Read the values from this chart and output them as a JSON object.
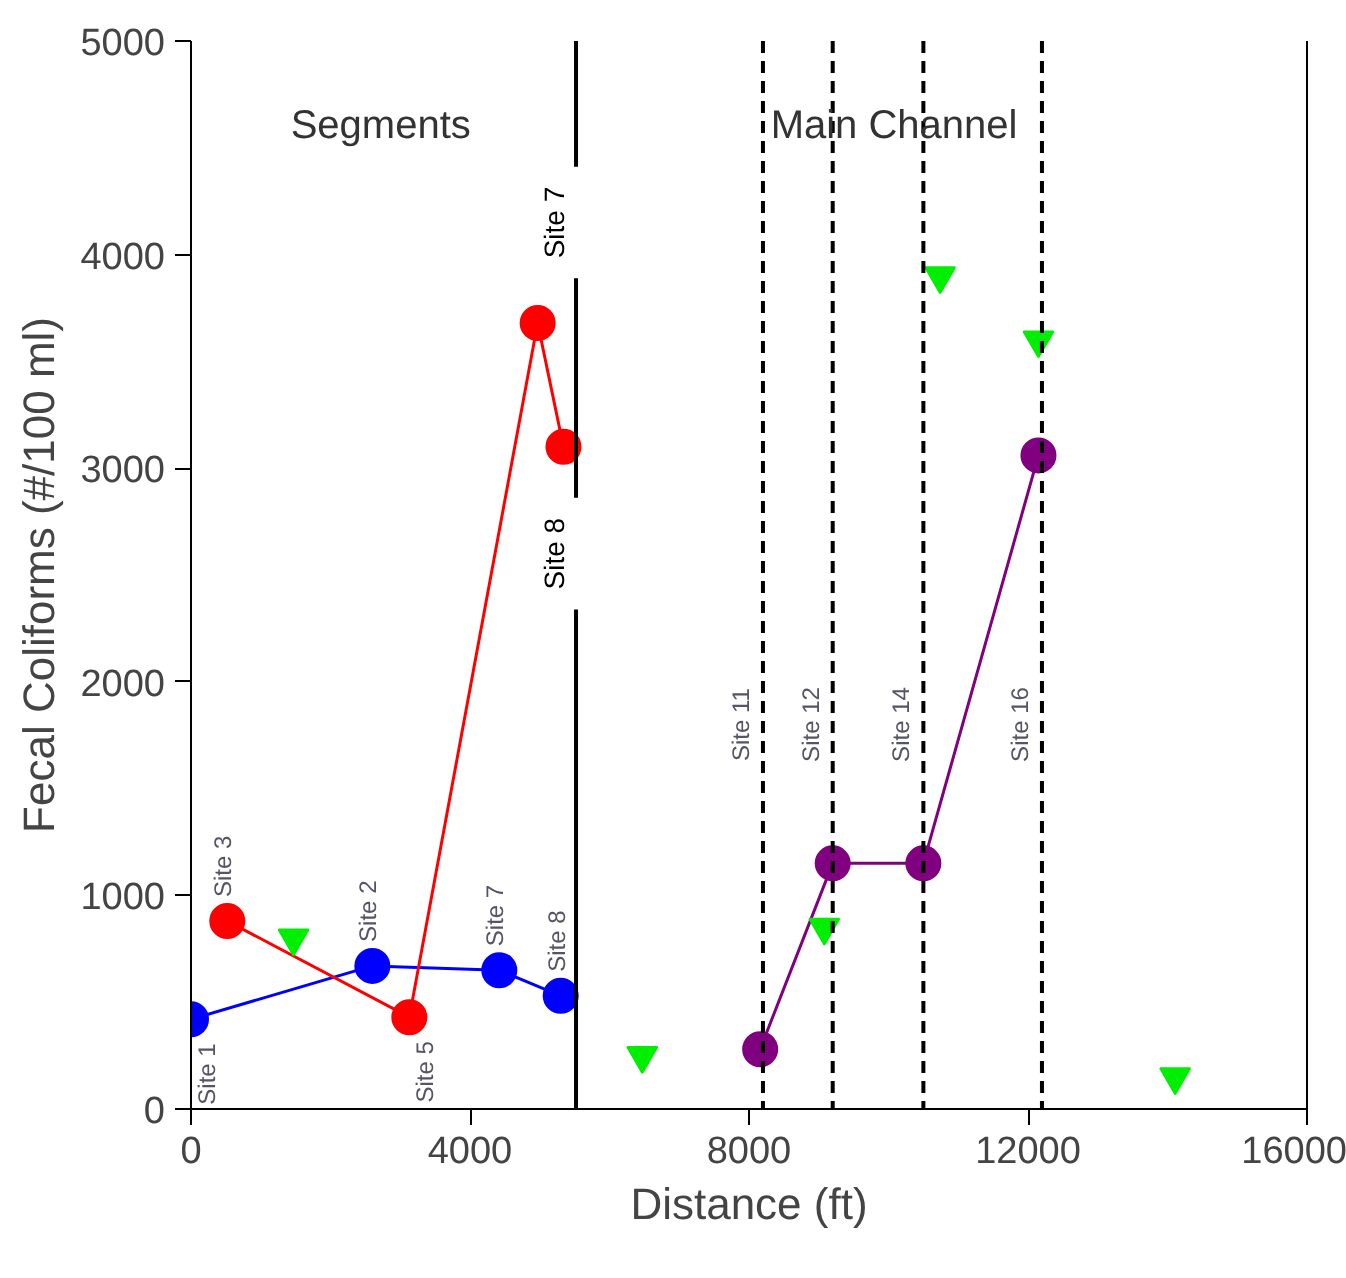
{
  "chart_data": {
    "type": "line",
    "xlabel": "Distance (ft)",
    "ylabel": "Fecal Coliforms (#/100 ml)",
    "xlim": [
      0,
      16000
    ],
    "ylim": [
      0,
      5000
    ],
    "xticks": [
      0,
      4000,
      8000,
      12000,
      16000
    ],
    "yticks": [
      0,
      1000,
      2000,
      3000,
      4000,
      5000
    ],
    "grid": false,
    "marker": "circle",
    "series": [
      {
        "color": "#0000ff",
        "x": [
          0,
          2600,
          4420,
          5300
        ],
        "values": [
          420,
          670,
          650,
          530
        ]
      },
      {
        "color": "#ff0000",
        "x": [
          520,
          3130,
          4970,
          5340
        ],
        "values": [
          880,
          430,
          3680,
          3100
        ]
      },
      {
        "color": "#800080",
        "x": [
          8160,
          9200,
          10500,
          12150
        ],
        "values": [
          280,
          1150,
          1150,
          3060
        ]
      },
      {
        "type": "scatter",
        "marker": "triangle",
        "color": "#00ee00",
        "x": [
          1470,
          6470,
          9080,
          10740,
          12150,
          14110
        ],
        "values": [
          800,
          250,
          850,
          3900,
          3600,
          150
        ]
      }
    ],
    "ref_lines": [
      {
        "axis": "x",
        "value": 5520,
        "line_style": "solid",
        "color": "#000000"
      },
      {
        "axis": "x",
        "value": 8200,
        "line_style": "dashed",
        "color": "#000000",
        "label": "Site 11"
      },
      {
        "axis": "x",
        "value": 9200,
        "line_style": "dashed",
        "color": "#000000",
        "label": "Site 12"
      },
      {
        "axis": "x",
        "value": 10500,
        "line_style": "dashed",
        "color": "#000000",
        "label": "Site 14"
      },
      {
        "axis": "x",
        "value": 12200,
        "line_style": "dashed",
        "color": "#000000",
        "label": "Site 16"
      }
    ],
    "annotations": [
      "Segments",
      "Main Channel",
      "Site 7",
      "Site 8",
      {
        "text": "Site 1",
        "x": 0,
        "y": 420
      },
      {
        "text": "Site 3",
        "x": 520,
        "y": 880
      },
      {
        "text": "Site 2",
        "x": 2600,
        "y": 670
      },
      {
        "text": "Site 5",
        "x": 3130,
        "y": 430
      },
      {
        "text": "Site 7",
        "x": 4420,
        "y": 650
      },
      {
        "text": "Site 8",
        "x": 5300,
        "y": 530
      }
    ]
  }
}
